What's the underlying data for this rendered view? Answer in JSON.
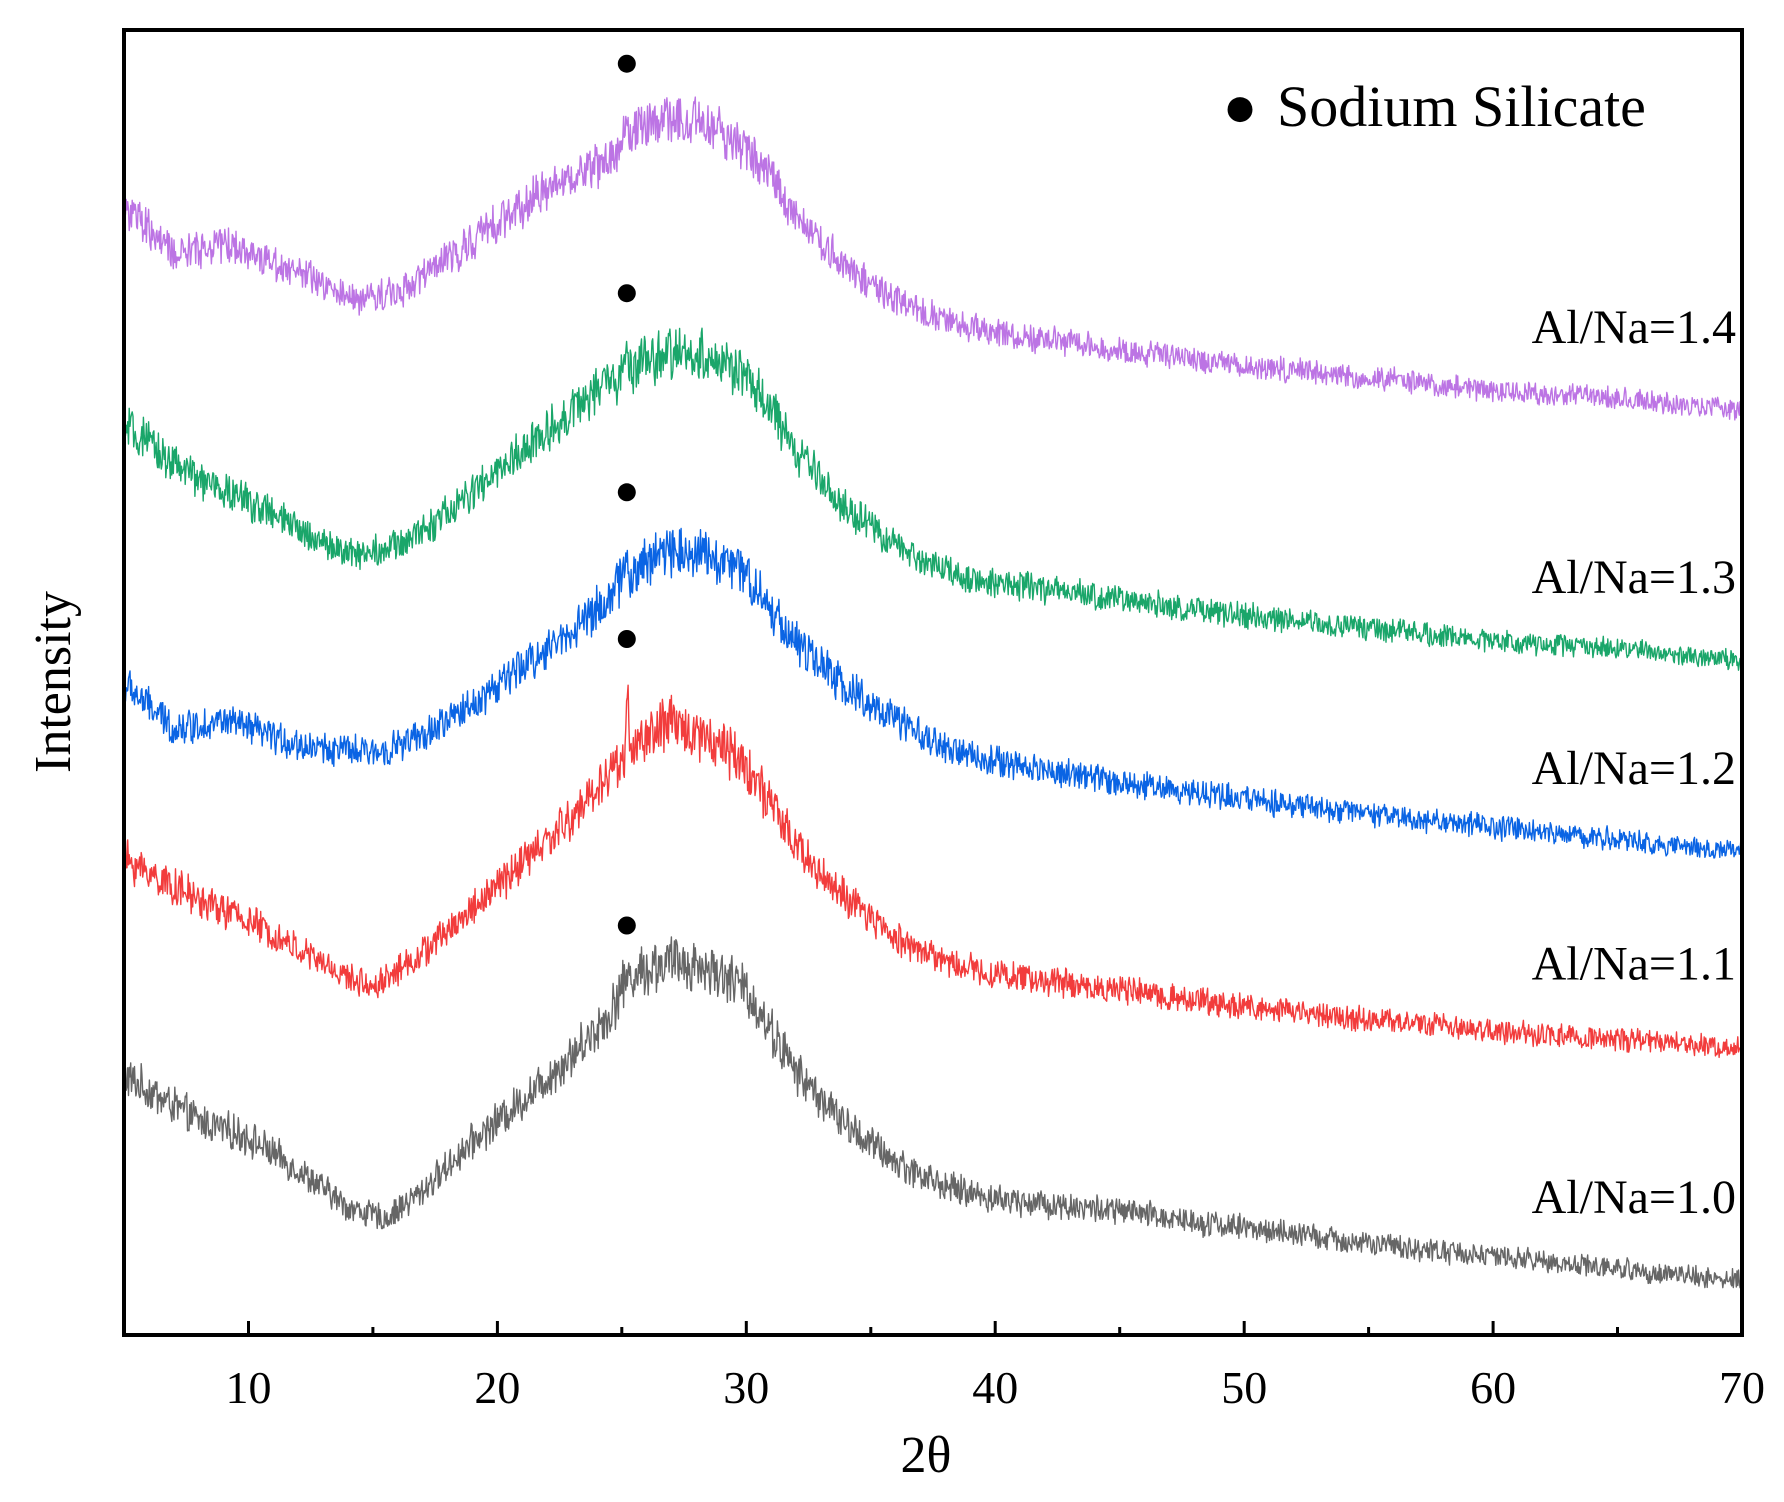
{
  "chart_data": {
    "type": "line",
    "title": "",
    "xlabel": "2θ",
    "ylabel": "Intensity",
    "xlim": [
      5,
      70
    ],
    "xticks": [
      10,
      20,
      30,
      40,
      50,
      60,
      70
    ],
    "yticks_shown": false,
    "grid": false,
    "legend": {
      "position": "top-right",
      "marker": "●",
      "text": "Sodium Silicate"
    },
    "peak_marker_x": 25.2,
    "series": [
      {
        "name": "Al/Na=1.0",
        "color": "#666666",
        "offset": 0,
        "x": [
          5,
          8,
          10,
          12,
          14,
          15.5,
          17,
          19,
          21,
          23,
          24.5,
          25.2,
          26,
          27,
          28,
          29,
          30,
          31,
          32,
          34,
          36,
          38,
          40,
          45,
          50,
          55,
          60,
          65,
          70
        ],
        "values": [
          51,
          40,
          36,
          28,
          19,
          16,
          23,
          35,
          45,
          56,
          66,
          75,
          77,
          79,
          78,
          76,
          72,
          62,
          52,
          39,
          30,
          24,
          21,
          18,
          14,
          10,
          7,
          4,
          1
        ]
      },
      {
        "name": "Al/Na=1.1",
        "color": "#f23c3c",
        "offset": 1,
        "x": [
          5,
          8,
          10,
          12,
          14,
          15,
          17,
          19,
          21,
          23,
          24.5,
          25.1,
          25.2,
          25.35,
          26,
          27,
          28,
          29,
          30,
          31,
          32,
          34,
          36,
          38,
          40,
          45,
          50,
          55,
          60,
          65,
          70
        ],
        "values": [
          49,
          39,
          34,
          27,
          20,
          18,
          26,
          37,
          48,
          59,
          70,
          74,
          90,
          75,
          79,
          82,
          80,
          77,
          72,
          62,
          52,
          39,
          30,
          24,
          21,
          17,
          13,
          10,
          7,
          5,
          3
        ]
      },
      {
        "name": "Al/Na=1.2",
        "color": "#0a64e4",
        "offset": 2,
        "x": [
          5,
          7,
          9,
          12,
          15,
          17,
          19,
          21,
          23,
          24.5,
          25.1,
          25.2,
          25.35,
          26,
          27,
          28,
          29,
          30,
          31,
          32,
          34,
          36,
          38,
          40,
          45,
          50,
          55,
          60,
          65,
          70
        ],
        "values": [
          43,
          32,
          34,
          28,
          26,
          30,
          38,
          47,
          56,
          64,
          69,
          77,
          68,
          73,
          76,
          75,
          73,
          70,
          61,
          53,
          42,
          34,
          27,
          24,
          19,
          15,
          11,
          8,
          5,
          2
        ]
      },
      {
        "name": "Al/Na=1.3",
        "color": "#1aa66a",
        "offset": 3,
        "x": [
          5,
          8,
          10,
          12,
          14,
          16,
          18,
          20,
          22,
          24,
          25.1,
          25.2,
          25.35,
          26,
          27,
          28,
          29,
          30,
          31,
          32,
          34,
          36,
          38,
          40,
          45,
          50,
          55,
          60,
          65,
          70
        ],
        "values": [
          58,
          45,
          40,
          33,
          27,
          29,
          37,
          47,
          57,
          67,
          71,
          78,
          72,
          74,
          76,
          76,
          74,
          70,
          62,
          52,
          38,
          29,
          23,
          20,
          16,
          12,
          9,
          6,
          4,
          1
        ]
      },
      {
        "name": "Al/Na=1.4",
        "color": "#bc74e4",
        "offset": 4,
        "x": [
          5,
          7,
          9,
          12,
          14,
          16,
          18,
          20,
          22,
          24,
          25,
          25.2,
          25.35,
          26,
          27,
          28,
          29,
          30,
          31,
          32,
          34,
          36,
          38,
          40,
          45,
          50,
          55,
          60,
          65,
          70
        ],
        "values": [
          51,
          39,
          42,
          35,
          28,
          30,
          38,
          47,
          55,
          61,
          65,
          73,
          68,
          71,
          72,
          71,
          69,
          65,
          58,
          49,
          36,
          28,
          23,
          20,
          16,
          12,
          9,
          6,
          4,
          1
        ]
      }
    ]
  }
}
